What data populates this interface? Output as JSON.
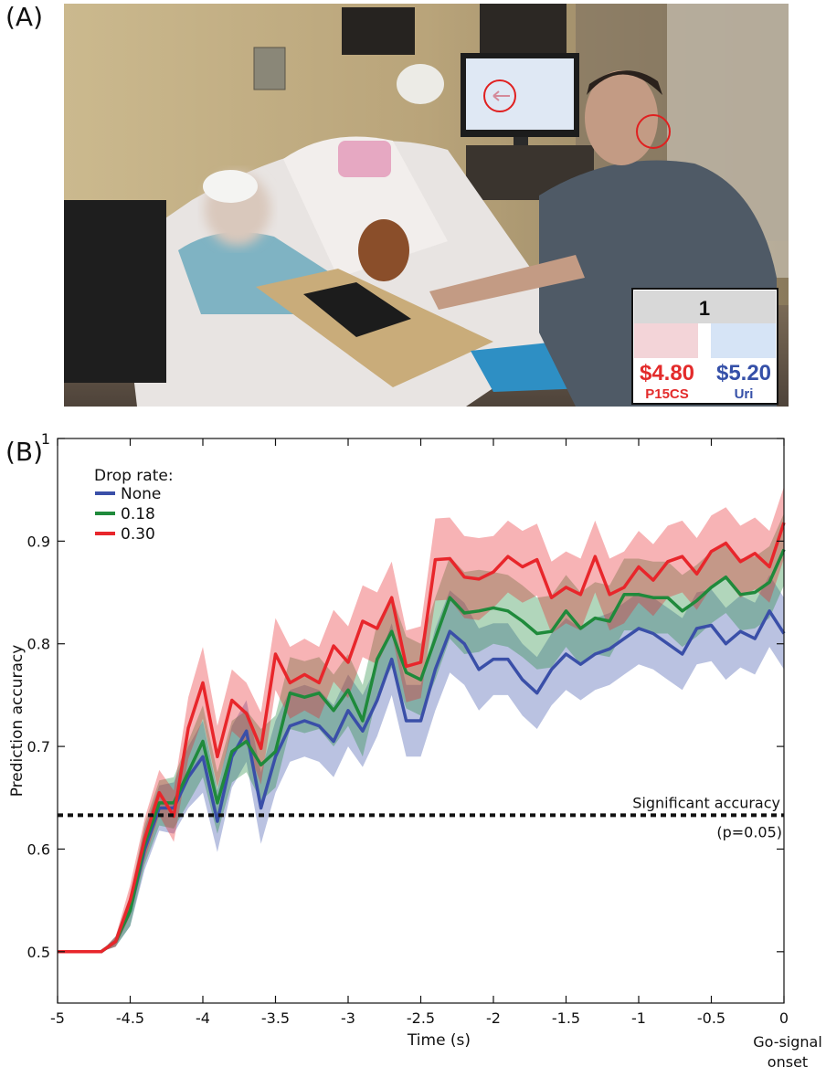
{
  "panels": {
    "a_label": "(A)",
    "b_label": "(B)"
  },
  "photo": {
    "scoreboard": {
      "round": "1",
      "left_amount": "$4.80",
      "left_name": "P15CS",
      "right_amount": "$5.20",
      "right_name": "Uri"
    }
  },
  "colors": {
    "none": "#3a4fa8",
    "rate_018": "#1f8a3b",
    "rate_030": "#e8262b",
    "score_red": "#e32b2b",
    "score_blue": "#3550a8"
  },
  "chart_data": {
    "type": "line",
    "xlabel": "Time (s)",
    "ylabel": "Prediction accuracy",
    "x_end_label": [
      "Go-signal",
      "onset"
    ],
    "xlim": [
      -5,
      0
    ],
    "ylim": [
      0.45,
      1.0
    ],
    "xticks": [
      -5,
      -4.5,
      -4,
      -3.5,
      -3,
      -2.5,
      -2,
      -1.5,
      -1,
      -0.5,
      0
    ],
    "xtick_labels": [
      "-5",
      "-4.5",
      "-4",
      "-3.5",
      "-3",
      "-2.5",
      "-2",
      "-1.5",
      "-1",
      "-0.5",
      "0"
    ],
    "yticks": [
      0.5,
      0.6,
      0.7,
      0.8,
      0.9,
      1.0
    ],
    "ytick_labels": [
      "0.5",
      "0.6",
      "0.7",
      "0.8",
      "0.9",
      "1"
    ],
    "legend_title": "Drop rate:",
    "legend_position": "top-left",
    "threshold": {
      "y": 0.633,
      "label": "Significant accuracy",
      "sublabel": "(p=0.05)"
    },
    "x": [
      -5,
      -4.9,
      -4.8,
      -4.7,
      -4.6,
      -4.5,
      -4.4,
      -4.3,
      -4.2,
      -4.1,
      -4.0,
      -3.9,
      -3.8,
      -3.7,
      -3.6,
      -3.5,
      -3.4,
      -3.3,
      -3.2,
      -3.1,
      -3.0,
      -2.9,
      -2.8,
      -2.7,
      -2.6,
      -2.5,
      -2.4,
      -2.3,
      -2.2,
      -2.1,
      -2.0,
      -1.9,
      -1.8,
      -1.7,
      -1.6,
      -1.5,
      -1.4,
      -1.3,
      -1.2,
      -1.1,
      -1.0,
      -0.9,
      -0.8,
      -0.7,
      -0.6,
      -0.5,
      -0.4,
      -0.3,
      -0.2,
      -0.1,
      0.0
    ],
    "series": [
      {
        "name": "None",
        "color": "#3a4fa8",
        "values": [
          0.5,
          0.5,
          0.5,
          0.5,
          0.51,
          0.54,
          0.6,
          0.64,
          0.64,
          0.67,
          0.69,
          0.627,
          0.69,
          0.715,
          0.64,
          0.69,
          0.72,
          0.725,
          0.72,
          0.705,
          0.735,
          0.715,
          0.745,
          0.785,
          0.725,
          0.725,
          0.775,
          0.812,
          0.8,
          0.775,
          0.785,
          0.785,
          0.765,
          0.752,
          0.775,
          0.79,
          0.78,
          0.79,
          0.795,
          0.805,
          0.815,
          0.81,
          0.8,
          0.79,
          0.815,
          0.818,
          0.8,
          0.812,
          0.805,
          0.832,
          0.81
        ]
      },
      {
        "name": "0.18",
        "color": "#1f8a3b",
        "values": [
          0.5,
          0.5,
          0.5,
          0.5,
          0.51,
          0.54,
          0.605,
          0.645,
          0.645,
          0.675,
          0.705,
          0.645,
          0.695,
          0.705,
          0.682,
          0.695,
          0.752,
          0.748,
          0.752,
          0.735,
          0.755,
          0.725,
          0.785,
          0.812,
          0.772,
          0.765,
          0.805,
          0.845,
          0.83,
          0.832,
          0.835,
          0.832,
          0.822,
          0.81,
          0.812,
          0.832,
          0.815,
          0.825,
          0.822,
          0.848,
          0.848,
          0.845,
          0.845,
          0.832,
          0.842,
          0.855,
          0.865,
          0.848,
          0.85,
          0.86,
          0.892
        ]
      },
      {
        "name": "0.30",
        "color": "#e8262b",
        "values": [
          0.5,
          0.5,
          0.5,
          0.5,
          0.51,
          0.55,
          0.61,
          0.655,
          0.632,
          0.718,
          0.762,
          0.69,
          0.745,
          0.732,
          0.698,
          0.79,
          0.762,
          0.77,
          0.762,
          0.798,
          0.782,
          0.822,
          0.815,
          0.845,
          0.778,
          0.782,
          0.882,
          0.883,
          0.865,
          0.863,
          0.87,
          0.885,
          0.875,
          0.882,
          0.845,
          0.855,
          0.848,
          0.885,
          0.848,
          0.855,
          0.875,
          0.862,
          0.88,
          0.885,
          0.868,
          0.89,
          0.898,
          0.88,
          0.888,
          0.875,
          0.918
        ]
      }
    ],
    "band_halfwidth": [
      0,
      0,
      0,
      0,
      0.005,
      0.015,
      0.02,
      0.022,
      0.025,
      0.03,
      0.035,
      0.03,
      0.03,
      0.03,
      0.035,
      0.035,
      0.035,
      0.035,
      0.035,
      0.035,
      0.035,
      0.035,
      0.035,
      0.035,
      0.035,
      0.035,
      0.04,
      0.04,
      0.04,
      0.04,
      0.035,
      0.035,
      0.035,
      0.035,
      0.035,
      0.035,
      0.035,
      0.035,
      0.035,
      0.035,
      0.035,
      0.035,
      0.035,
      0.035,
      0.035,
      0.035,
      0.035,
      0.035,
      0.035,
      0.035,
      0.035
    ]
  }
}
